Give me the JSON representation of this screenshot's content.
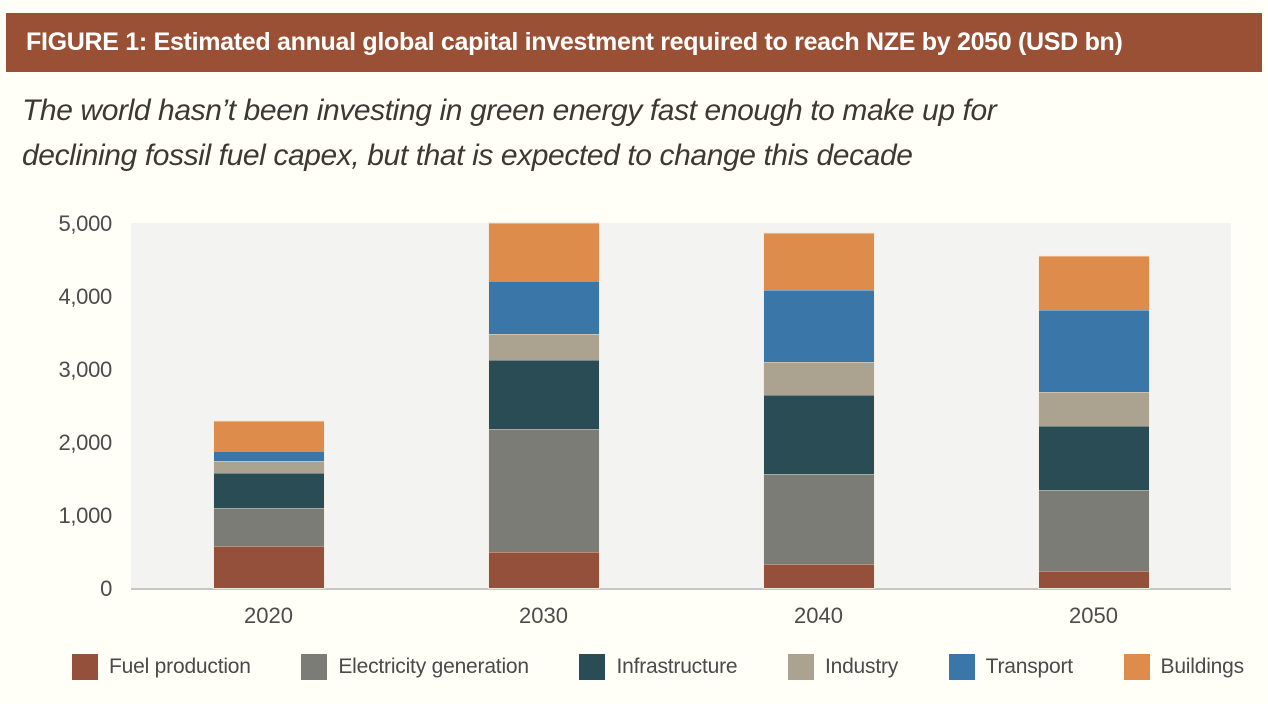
{
  "header": {
    "title": "FIGURE 1: Estimated annual global capital investment required to reach NZE by 2050 (USD bn)",
    "background_color": "#9A5034",
    "text_color": "#FFFFFF"
  },
  "subtitle": {
    "line1": "The world hasn’t been investing in green energy fast enough to make up for",
    "line2": "declining fossil fuel capex, but that is expected to change this decade"
  },
  "chart_data": {
    "type": "bar",
    "stacked": true,
    "title": "Estimated annual global capital investment required to reach NZE by 2050 (USD bn)",
    "categories": [
      "2020",
      "2030",
      "2040",
      "2050"
    ],
    "series": [
      {
        "name": "Fuel production",
        "color": "#94503A",
        "values": [
          580,
          500,
          330,
          230
        ]
      },
      {
        "name": "Electricity generation",
        "color": "#7A7C75",
        "values": [
          520,
          1680,
          1230,
          1110
        ]
      },
      {
        "name": "Infrastructure",
        "color": "#2A4C55",
        "values": [
          470,
          940,
          1090,
          880
        ]
      },
      {
        "name": "Industry",
        "color": "#ACA290",
        "values": [
          170,
          360,
          450,
          470
        ]
      },
      {
        "name": "Transport",
        "color": "#3B76A8",
        "values": [
          140,
          730,
          980,
          1120
        ]
      },
      {
        "name": "Buildings",
        "color": "#DE8C4B",
        "values": [
          410,
          790,
          780,
          740
        ]
      }
    ],
    "totals": [
      2290,
      5000,
      4860,
      4550
    ],
    "xlabel": "",
    "ylabel": "",
    "ylim": [
      0,
      5000
    ],
    "ytick_values": [
      0,
      1000,
      2000,
      3000,
      4000,
      5000
    ],
    "ytick_labels": [
      "0",
      "1,000",
      "2,000",
      "3,000",
      "4,000",
      "5,000"
    ],
    "grid": false,
    "legend_position": "bottom",
    "plot_background": "#F3F3F1"
  }
}
